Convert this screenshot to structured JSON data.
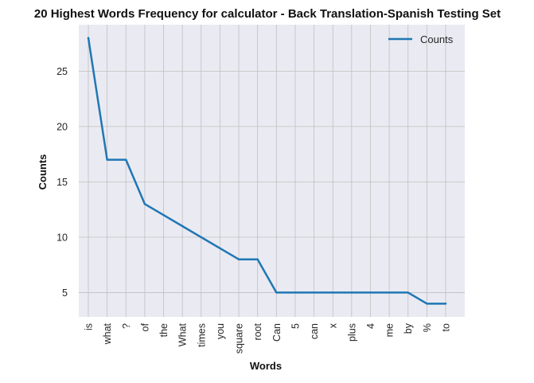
{
  "chart_data": {
    "type": "line",
    "title": "20 Highest Words Frequency for calculator - Back Translation-Spanish Testing Set",
    "xlabel": "Words",
    "ylabel": "Counts",
    "categories": [
      "is",
      "what",
      "?",
      "of",
      "the",
      "What",
      "times",
      "you",
      "square",
      "root",
      "Can",
      "5",
      "can",
      "x",
      "plus",
      "4",
      "me",
      "by",
      "%",
      "to"
    ],
    "series": [
      {
        "name": "Counts",
        "values": [
          28,
          17,
          17,
          13,
          12,
          11,
          10,
          9,
          8,
          8,
          5,
          5,
          5,
          5,
          5,
          5,
          5,
          5,
          4,
          4
        ],
        "color": "#1f77b4"
      }
    ],
    "yticks": [
      5,
      10,
      15,
      20,
      25
    ],
    "ylim": [
      2.8,
      29.2
    ],
    "grid": true,
    "legend_position": "upper right",
    "plot_background": "#eaeaf2",
    "grid_color": "#c0c0c0"
  }
}
